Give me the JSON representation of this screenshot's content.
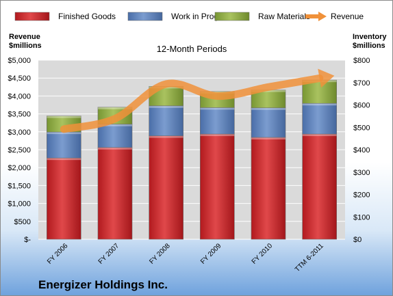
{
  "chart_data": {
    "type": "bar",
    "title": "12-Month Periods",
    "categories": [
      "FY 2006",
      "FY 2007",
      "FY 2008",
      "FY 2009",
      "FY 2010",
      "TTM 6-2011"
    ],
    "series": [
      {
        "name": "Finished Goods",
        "axis": "right",
        "stack": "inventory",
        "color": "#c8282c",
        "values": [
          363,
          410,
          462,
          470,
          455,
          470
        ]
      },
      {
        "name": "Work in Progress",
        "axis": "right",
        "stack": "inventory",
        "color": "#5b7fb8",
        "values": [
          116,
          104,
          134,
          118,
          132,
          137
        ]
      },
      {
        "name": "Raw Materials",
        "axis": "right",
        "stack": "inventory",
        "color": "#8aaa44",
        "values": [
          72,
          76,
          87,
          72,
          80,
          104
        ]
      },
      {
        "name": "Revenue",
        "axis": "left",
        "type": "line",
        "color": "#f0913a",
        "values": [
          3075,
          3365,
          4335,
          3998,
          4249,
          4495
        ]
      }
    ],
    "left_axis": {
      "label_line1": "Revenue",
      "label_line2": "$millions",
      "ylim": [
        0,
        5000
      ],
      "ticks": [
        "$-",
        "$500",
        "$1,000",
        "$1,500",
        "$2,000",
        "$2,500",
        "$3,000",
        "$3,500",
        "$4,000",
        "$4,500",
        "$5,000"
      ]
    },
    "right_axis": {
      "label_line1": "Inventory",
      "label_line2": "$millions",
      "ylim": [
        0,
        800
      ],
      "ticks": [
        "$0",
        "$100",
        "$200",
        "$300",
        "$400",
        "$500",
        "$600",
        "$700",
        "$800"
      ]
    },
    "grid": true,
    "legend_position": "top"
  },
  "company": "Energizer Holdings Inc."
}
